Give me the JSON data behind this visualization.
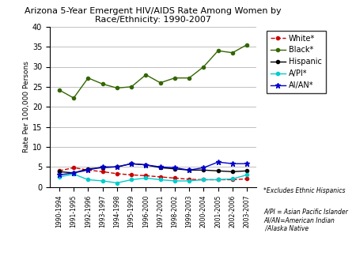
{
  "title": "Arizona 5-Year Emergent HIV/AIDS Rate Among Women by\nRace/Ethnicity: 1990-2007",
  "ylabel": "Rate Per 100,000 Persons",
  "ylim": [
    0,
    40
  ],
  "yticks": [
    0,
    5,
    10,
    15,
    20,
    25,
    30,
    35,
    40
  ],
  "categories": [
    "1990-1994",
    "1991-1995",
    "1992-1996",
    "1993-1997",
    "1994-1998",
    "1995-1999",
    "1996-2000",
    "1997-2001",
    "1998-2002",
    "1999-2003",
    "2000-2004",
    "2001-2005",
    "2002-2006",
    "2003-2007"
  ],
  "series": {
    "White*": {
      "values": [
        4.0,
        4.8,
        4.2,
        3.8,
        3.3,
        3.0,
        2.8,
        2.5,
        2.2,
        1.9,
        1.8,
        1.8,
        1.8,
        2.0
      ],
      "color": "#cc0000",
      "marker": "o",
      "linestyle": "--"
    },
    "Black*": {
      "values": [
        24.2,
        22.2,
        27.2,
        25.7,
        24.7,
        25.0,
        28.0,
        26.0,
        27.2,
        27.2,
        30.0,
        34.0,
        33.5,
        35.5
      ],
      "color": "#336600",
      "marker": "o",
      "linestyle": "-"
    },
    "Hispanic": {
      "values": [
        3.8,
        3.5,
        4.5,
        4.8,
        5.0,
        5.8,
        5.5,
        4.8,
        4.5,
        4.2,
        4.2,
        4.0,
        3.8,
        4.0
      ],
      "color": "#000000",
      "marker": "o",
      "linestyle": "-"
    },
    "A/PI*": {
      "values": [
        2.5,
        3.2,
        1.8,
        1.5,
        1.0,
        1.8,
        2.2,
        1.8,
        1.5,
        1.5,
        1.8,
        1.8,
        2.0,
        3.0
      ],
      "color": "#00cccc",
      "marker": "o",
      "linestyle": "-"
    },
    "AI/AN*": {
      "values": [
        3.0,
        3.5,
        4.2,
        5.0,
        5.0,
        5.8,
        5.5,
        5.0,
        4.8,
        4.2,
        4.8,
        6.2,
        5.8,
        5.8
      ],
      "color": "#0000cc",
      "marker": "*",
      "linestyle": "-"
    }
  },
  "legend_labels": [
    "White*",
    "Black*",
    "Hispanic",
    "A/PI*",
    "AI/AN*"
  ],
  "footnote1": "*Excludes Ethnic Hispanics",
  "footnote2": "A/PI = Asian Pacific Islander\nAI/AN=American Indian\n /Alaska Native",
  "background_color": "#ffffff",
  "grid_color": "#c0c0c0"
}
